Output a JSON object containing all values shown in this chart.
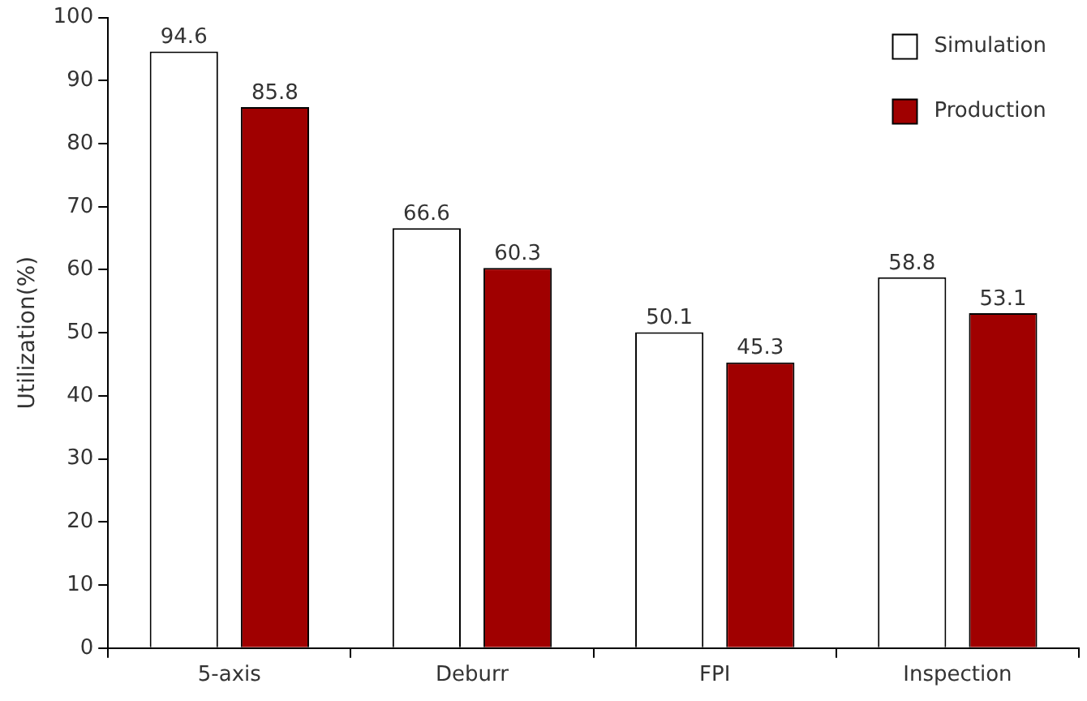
{
  "chart_data": {
    "type": "bar",
    "ylabel": "Utilization(%)",
    "categories": [
      "5-axis",
      "Deburr",
      "FPI",
      "Inspection"
    ],
    "series": [
      {
        "name": "Simulation",
        "color": "#ffffff",
        "values": [
          94.6,
          66.6,
          50.1,
          58.8
        ]
      },
      {
        "name": "Production",
        "color": "#a00000",
        "values": [
          85.8,
          60.3,
          45.3,
          53.1
        ]
      }
    ],
    "ylim": [
      0,
      100
    ],
    "yticks": [
      0,
      10,
      20,
      30,
      40,
      50,
      60,
      70,
      80,
      90,
      100
    ],
    "grid": false,
    "legend": "top right",
    "data_labels": true
  }
}
